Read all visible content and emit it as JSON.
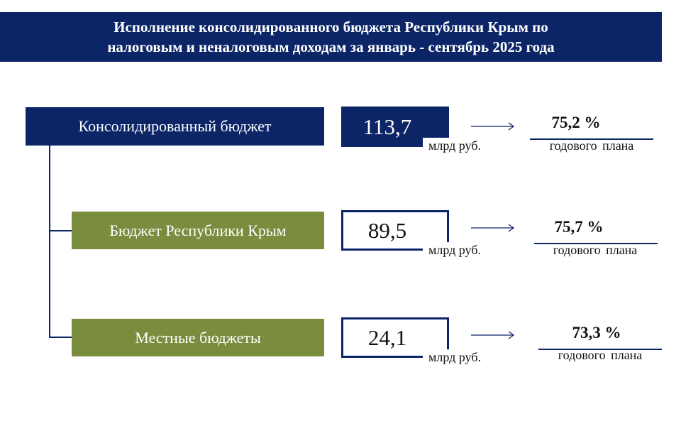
{
  "header": {
    "line1": "Исполнение  консолидированного  бюджета  Республики Крым  по",
    "line2": "налоговым и неналоговым  доходам за январь - сентябрь  2025 года"
  },
  "rows": [
    {
      "label": "Консолидированный бюджет",
      "value": "113,7",
      "unit": "млрд руб.",
      "percent": "75,2 %",
      "plan": "годового  плана"
    },
    {
      "label": "Бюджет Республики Крым",
      "value": "89,5",
      "unit": "млрд руб.",
      "percent": "75,7 %",
      "plan": "годового  плана"
    },
    {
      "label": "Местные бюджеты",
      "value": "24,1",
      "unit": "млрд руб.",
      "percent": "73,3 %",
      "plan": "годового  плана"
    }
  ],
  "colors": {
    "navy": "#0b2567",
    "green": "#7a8c3e"
  },
  "icons": {
    "arrow": "arrow-right-icon"
  }
}
